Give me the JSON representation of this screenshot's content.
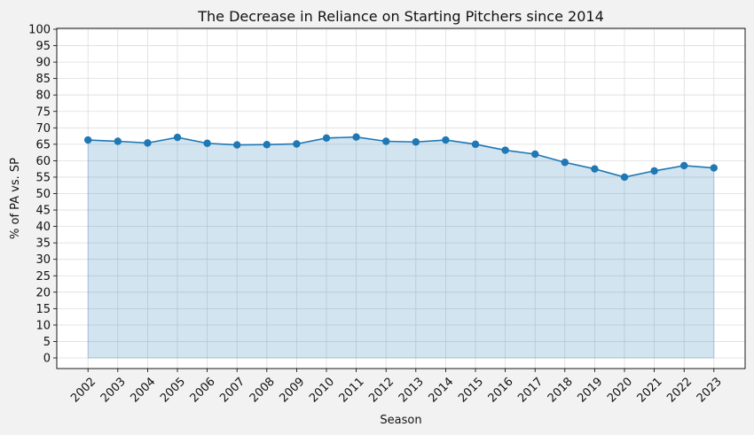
{
  "chart_data": {
    "type": "area",
    "title": "The Decrease in Reliance on Starting Pitchers since 2014",
    "xlabel": "Season",
    "ylabel": "% of PA vs. SP",
    "ylim": [
      0,
      100
    ],
    "yticks": [
      0,
      5,
      10,
      15,
      20,
      25,
      30,
      35,
      40,
      45,
      50,
      55,
      60,
      65,
      70,
      75,
      80,
      85,
      90,
      95,
      100
    ],
    "grid": true,
    "categories": [
      "2002",
      "2003",
      "2004",
      "2005",
      "2006",
      "2007",
      "2008",
      "2009",
      "2010",
      "2011",
      "2012",
      "2013",
      "2014",
      "2015",
      "2016",
      "2017",
      "2018",
      "2019",
      "2020",
      "2021",
      "2022",
      "2023"
    ],
    "values": [
      66.3,
      65.9,
      65.4,
      67.1,
      65.3,
      64.8,
      64.9,
      65.1,
      66.9,
      67.2,
      65.9,
      65.7,
      66.3,
      65.0,
      63.2,
      62.0,
      59.5,
      57.5,
      55.0,
      56.9,
      58.5,
      57.8
    ],
    "colors": {
      "line": "#1f77b4",
      "fill": "#1f77b4",
      "background": "#ffffff",
      "page": "#f2f2f2",
      "grid": "#dddddd"
    }
  }
}
